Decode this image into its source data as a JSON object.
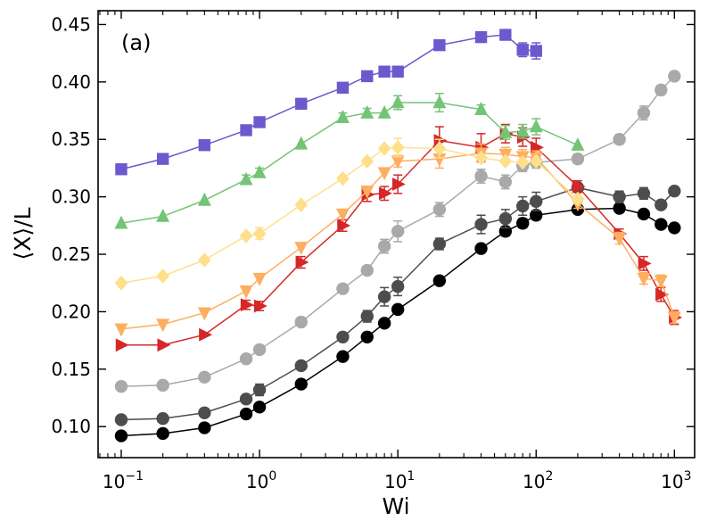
{
  "chart_data": {
    "type": "line",
    "panel_label": "(a)",
    "xlabel": "Wi",
    "ylabel": "⟨X⟩/L",
    "xscale": "log",
    "xlim": [
      0.068,
      1400
    ],
    "ylim": [
      0.073,
      0.462
    ],
    "x_ticks": [
      {
        "value": 0.1,
        "base": "10",
        "exp": "−1"
      },
      {
        "value": 1,
        "base": "10",
        "exp": "0"
      },
      {
        "value": 10,
        "base": "10",
        "exp": "1"
      },
      {
        "value": 100,
        "base": "10",
        "exp": "2"
      },
      {
        "value": 1000,
        "base": "10",
        "exp": "3"
      }
    ],
    "y_ticks": [
      {
        "value": 0.1,
        "label": "0.10"
      },
      {
        "value": 0.15,
        "label": "0.15"
      },
      {
        "value": 0.2,
        "label": "0.20"
      },
      {
        "value": 0.25,
        "label": "0.25"
      },
      {
        "value": 0.3,
        "label": "0.30"
      },
      {
        "value": 0.35,
        "label": "0.35"
      },
      {
        "value": 0.4,
        "label": "0.40"
      },
      {
        "value": 0.45,
        "label": "0.45"
      }
    ],
    "grid": false,
    "series": [
      {
        "color": "#000000",
        "marker": "circle",
        "x": [
          0.1,
          0.2,
          0.4,
          0.8,
          1,
          2,
          4,
          6,
          8,
          10,
          20,
          40,
          60,
          80,
          100,
          200,
          400,
          600,
          800,
          1000
        ],
        "y": [
          0.092,
          0.094,
          0.099,
          0.111,
          0.117,
          0.137,
          0.161,
          0.178,
          0.19,
          0.202,
          0.227,
          0.255,
          0.27,
          0.277,
          0.284,
          0.289,
          0.29,
          0.285,
          0.276,
          0.273
        ],
        "err": [
          0,
          0,
          0,
          0,
          0,
          0,
          0,
          0,
          0,
          0,
          0,
          0,
          0.004,
          0.004,
          0.004,
          0,
          0,
          0,
          0,
          0
        ]
      },
      {
        "color": "#4d4d4d",
        "marker": "circle",
        "x": [
          0.1,
          0.2,
          0.4,
          0.8,
          1,
          2,
          4,
          6,
          8,
          10,
          20,
          40,
          60,
          80,
          100,
          200,
          400,
          600,
          800,
          1000
        ],
        "y": [
          0.106,
          0.107,
          0.112,
          0.124,
          0.132,
          0.153,
          0.178,
          0.196,
          0.213,
          0.222,
          0.259,
          0.276,
          0.281,
          0.292,
          0.296,
          0.308,
          0.3,
          0.303,
          0.293,
          0.305
        ],
        "err": [
          0,
          0,
          0,
          0,
          0.005,
          0,
          0,
          0.005,
          0.008,
          0.008,
          0.005,
          0.008,
          0.008,
          0.008,
          0.008,
          0,
          0.005,
          0.005,
          0,
          0
        ]
      },
      {
        "color": "#a9a9a9",
        "marker": "circle",
        "x": [
          0.1,
          0.2,
          0.4,
          0.8,
          1,
          2,
          4,
          6,
          8,
          10,
          20,
          40,
          60,
          80,
          100,
          200,
          400,
          600,
          800,
          1000
        ],
        "y": [
          0.135,
          0.136,
          0.143,
          0.159,
          0.167,
          0.191,
          0.22,
          0.236,
          0.257,
          0.27,
          0.289,
          0.318,
          0.313,
          0.327,
          0.33,
          0.333,
          0.35,
          0.373,
          0.393,
          0.405
        ],
        "err": [
          0,
          0,
          0,
          0,
          0,
          0,
          0,
          0,
          0.006,
          0.009,
          0.006,
          0.006,
          0.006,
          0.005,
          0.005,
          0.004,
          0.004,
          0.006,
          0.004,
          0.003
        ]
      },
      {
        "color": "#d62728",
        "marker": "triangle-right",
        "x": [
          0.1,
          0.2,
          0.4,
          0.8,
          1,
          2,
          4,
          6,
          8,
          10,
          20,
          40,
          60,
          80,
          100,
          200,
          400,
          600,
          800,
          1000
        ],
        "y": [
          0.171,
          0.171,
          0.18,
          0.206,
          0.205,
          0.243,
          0.275,
          0.302,
          0.303,
          0.311,
          0.349,
          0.343,
          0.355,
          0.352,
          0.343,
          0.309,
          0.268,
          0.242,
          0.215,
          0.195
        ],
        "err": [
          0,
          0,
          0,
          0.004,
          0.004,
          0.005,
          0.005,
          0.006,
          0.006,
          0.008,
          0.012,
          0.012,
          0.008,
          0.008,
          0.008,
          0.005,
          0.004,
          0.006,
          0.006,
          0.006
        ]
      },
      {
        "color": "#fdae61",
        "marker": "triangle-down",
        "x": [
          0.1,
          0.2,
          0.4,
          0.8,
          1,
          2,
          4,
          6,
          8,
          10,
          20,
          40,
          60,
          80,
          100,
          200,
          400,
          600,
          800,
          1000
        ],
        "y": [
          0.185,
          0.189,
          0.199,
          0.218,
          0.229,
          0.256,
          0.285,
          0.305,
          0.321,
          0.331,
          0.333,
          0.338,
          0.337,
          0.335,
          0.334,
          0.294,
          0.264,
          0.229,
          0.227,
          0.195
        ],
        "err": [
          0,
          0,
          0,
          0,
          0,
          0,
          0,
          0,
          0,
          0.005,
          0.008,
          0.008,
          0.006,
          0.006,
          0.006,
          0.004,
          0.005,
          0.005,
          0.005,
          0.005
        ]
      },
      {
        "color": "#fee08b",
        "marker": "diamond",
        "x": [
          0.1,
          0.2,
          0.4,
          0.8,
          1,
          2,
          4,
          6,
          8,
          10,
          20,
          40,
          60,
          80,
          100,
          200
        ],
        "y": [
          0.225,
          0.231,
          0.245,
          0.266,
          0.268,
          0.293,
          0.316,
          0.331,
          0.342,
          0.343,
          0.342,
          0.334,
          0.331,
          0.33,
          0.331,
          0.298
        ],
        "err": [
          0,
          0,
          0,
          0,
          0.005,
          0,
          0,
          0,
          0,
          0.008,
          0.008,
          0,
          0,
          0,
          0,
          0
        ]
      },
      {
        "color": "#74c476",
        "marker": "triangle-up",
        "x": [
          0.1,
          0.2,
          0.4,
          0.8,
          1,
          2,
          4,
          6,
          8,
          10,
          20,
          40,
          60,
          80,
          100,
          200
        ],
        "y": [
          0.277,
          0.283,
          0.297,
          0.315,
          0.321,
          0.346,
          0.369,
          0.373,
          0.373,
          0.382,
          0.382,
          0.376,
          0.356,
          0.357,
          0.361,
          0.345
        ],
        "err": [
          0,
          0,
          0,
          0.004,
          0.004,
          0,
          0.004,
          0.004,
          0,
          0.006,
          0.008,
          0.004,
          0.006,
          0.006,
          0.007,
          0
        ]
      },
      {
        "color": "#6a5acd",
        "marker": "square",
        "x": [
          0.1,
          0.2,
          0.4,
          0.8,
          1,
          2,
          4,
          6,
          8,
          10,
          20,
          40,
          60,
          80,
          100
        ],
        "y": [
          0.324,
          0.333,
          0.345,
          0.358,
          0.365,
          0.381,
          0.395,
          0.405,
          0.409,
          0.409,
          0.432,
          0.439,
          0.441,
          0.428,
          0.427
        ],
        "err": [
          0,
          0,
          0,
          0,
          0,
          0,
          0,
          0,
          0,
          0,
          0,
          0,
          0.004,
          0.006,
          0.007
        ]
      }
    ]
  }
}
